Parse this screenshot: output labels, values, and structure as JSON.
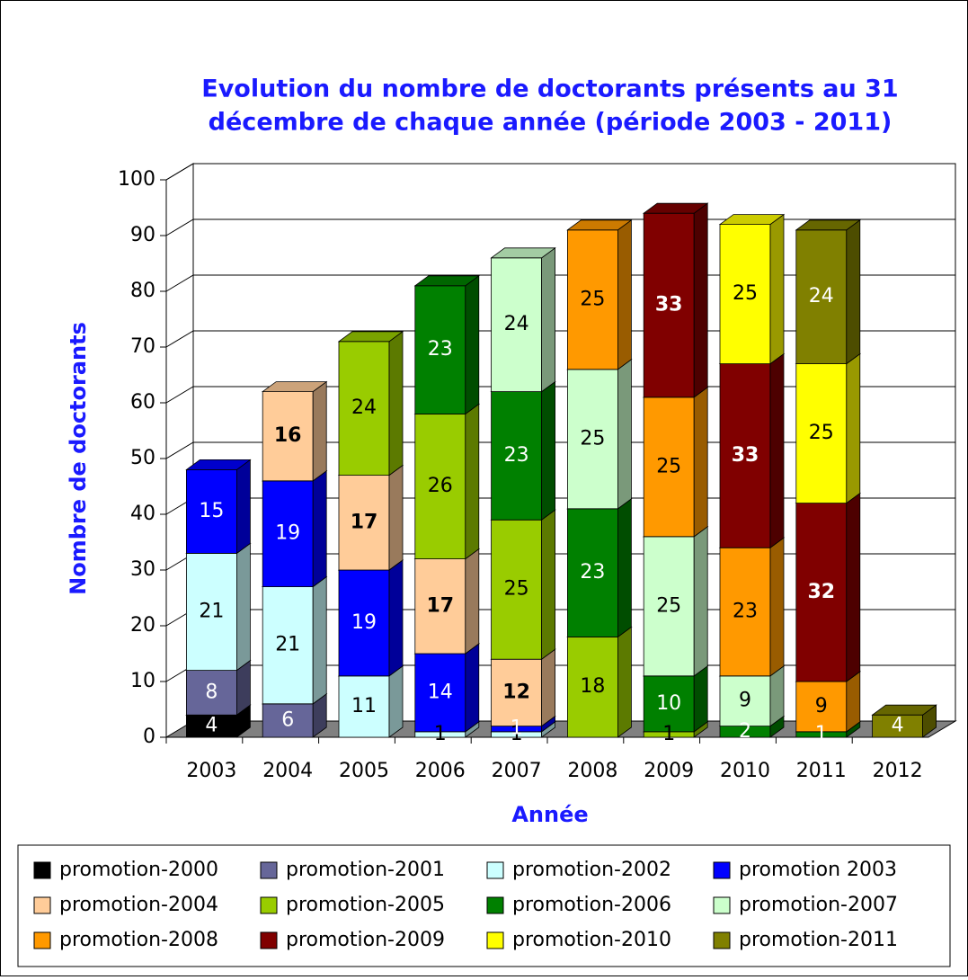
{
  "chart_data": {
    "type": "bar3d_stacked",
    "title": "Evolution du nombre de doctorants présents au 31",
    "title_line2": "décembre de chaque année (période 2003 - 2011)",
    "x_label": "Année",
    "y_label": "Nombre de doctorants",
    "categories": [
      "2003",
      "2004",
      "2005",
      "2006",
      "2007",
      "2008",
      "2009",
      "2010",
      "2011",
      "2012"
    ],
    "ylim": [
      0,
      100
    ],
    "yticks": [
      0,
      10,
      20,
      30,
      40,
      50,
      60,
      70,
      80,
      90,
      100
    ],
    "grid": true,
    "legend": "bottom",
    "series": [
      {
        "name": "promotion-2000",
        "color": "#000000",
        "label_color": "#ffffff",
        "values": [
          4,
          null,
          null,
          null,
          null,
          null,
          null,
          null,
          null,
          null
        ]
      },
      {
        "name": "promotion-2001",
        "color": "#666699",
        "label_color": "#ffffff",
        "values": [
          8,
          6,
          null,
          null,
          null,
          null,
          null,
          null,
          null,
          null
        ]
      },
      {
        "name": "promotion-2002",
        "color": "#ccffff",
        "label_color": "#000000",
        "values": [
          21,
          21,
          11,
          1,
          1,
          null,
          null,
          null,
          null,
          null
        ]
      },
      {
        "name": "promotion 2003",
        "color": "#0000ff",
        "label_color": "#ffffff",
        "values": [
          15,
          19,
          19,
          14,
          1,
          null,
          null,
          null,
          null,
          null
        ]
      },
      {
        "name": "promotion-2004",
        "color": "#ffcc99",
        "label_color": "#000000",
        "label_bold": true,
        "values": [
          null,
          16,
          17,
          17,
          12,
          null,
          null,
          null,
          null,
          null
        ]
      },
      {
        "name": "promotion-2005",
        "color": "#99cc00",
        "label_color": "#000000",
        "values": [
          null,
          null,
          24,
          26,
          25,
          18,
          1,
          null,
          null,
          null
        ]
      },
      {
        "name": "promotion-2006",
        "color": "#008000",
        "label_color": "#ffffff",
        "values": [
          null,
          null,
          null,
          23,
          23,
          23,
          10,
          2,
          1,
          null
        ]
      },
      {
        "name": "promotion-2007",
        "color": "#ccffcc",
        "label_color": "#000000",
        "values": [
          null,
          null,
          null,
          null,
          24,
          25,
          25,
          9,
          null,
          null
        ]
      },
      {
        "name": "promotion-2008",
        "color": "#ff9900",
        "label_color": "#000000",
        "values": [
          null,
          null,
          null,
          null,
          null,
          25,
          25,
          23,
          9,
          null
        ]
      },
      {
        "name": "promotion-2009",
        "color": "#800000",
        "label_color": "#ffffff",
        "label_bold": true,
        "values": [
          null,
          null,
          null,
          null,
          null,
          null,
          33,
          33,
          32,
          null
        ]
      },
      {
        "name": "promotion-2010",
        "color": "#ffff00",
        "label_color": "#000000",
        "values": [
          null,
          null,
          null,
          null,
          null,
          null,
          null,
          25,
          25,
          null
        ]
      },
      {
        "name": "promotion-2011",
        "color": "#808000",
        "label_color": "#ffffff",
        "values": [
          null,
          null,
          null,
          null,
          null,
          null,
          null,
          null,
          24,
          4
        ]
      }
    ]
  }
}
